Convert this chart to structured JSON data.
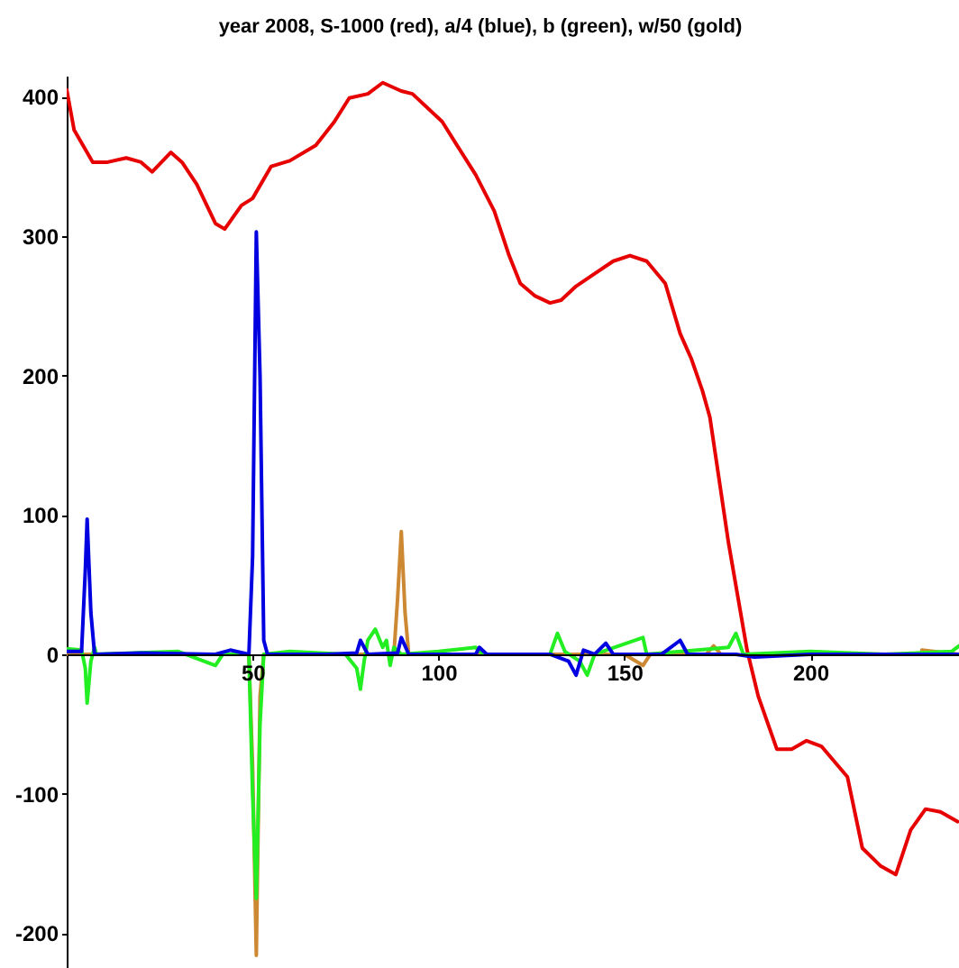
{
  "chart_data": {
    "type": "line",
    "title": "year 2008,   S-1000 (red), a/4 (blue), b (green), w/50 (gold)",
    "xlim": [
      0,
      240
    ],
    "ylim": [
      -225,
      415
    ],
    "xticks": [
      50,
      100,
      150,
      200
    ],
    "yticks": [
      -200,
      -100,
      0,
      100,
      200,
      300,
      400
    ],
    "grid": false,
    "line_style": "solid",
    "series": [
      {
        "color": "#e60000",
        "x": [
          0,
          2,
          7,
          11,
          16,
          20,
          23,
          28,
          31,
          35,
          40,
          42.5,
          47,
          50,
          55,
          60,
          67,
          72,
          76,
          81,
          85,
          90,
          93,
          101,
          105,
          110,
          115,
          119,
          122,
          126,
          130,
          133,
          137,
          142,
          147,
          151.5,
          156,
          161,
          165,
          168,
          171,
          173,
          178,
          183,
          186,
          191,
          195,
          199,
          203,
          210,
          214,
          219,
          223,
          227,
          231,
          235,
          239.6
        ],
        "values": [
          405,
          376,
          353,
          353,
          356,
          353,
          346,
          360,
          353,
          337,
          309,
          305,
          322,
          327,
          350,
          354,
          365,
          382,
          399,
          402,
          410,
          404,
          402,
          382,
          365,
          344,
          318,
          286,
          266,
          257,
          252,
          254,
          264,
          273,
          282,
          286,
          282,
          266,
          230,
          212,
          189,
          170,
          80,
          3,
          -30,
          -68,
          -68,
          -62,
          -66,
          -88,
          -139,
          -152,
          -158,
          -126,
          -111,
          -113,
          -120
        ]
      },
      {
        "color": "#cc8833",
        "x": [
          0,
          49,
          50,
          51,
          52,
          53,
          88,
          89,
          90,
          91,
          92,
          150,
          155,
          157,
          172,
          174,
          176,
          200,
          230,
          240
        ],
        "values": [
          0,
          0,
          -80,
          -216,
          -30,
          0,
          0,
          40,
          88,
          30,
          0,
          0,
          -8,
          0,
          0,
          6,
          0,
          null,
          3,
          0
        ]
      },
      {
        "color": "#22ee22",
        "x": [
          0,
          4,
          5,
          5.5,
          6.5,
          7.5,
          8,
          30,
          40,
          42,
          49,
          50,
          51,
          52,
          53,
          60,
          75,
          78,
          79,
          80,
          81,
          83,
          85,
          86,
          87,
          88,
          90,
          100,
          110,
          112,
          130,
          132,
          134,
          138,
          140,
          142,
          155,
          156,
          178,
          180,
          182,
          200,
          220,
          238,
          240
        ],
        "values": [
          4,
          3,
          -10,
          -35,
          -5,
          5,
          0,
          2,
          -8,
          0,
          0,
          -100,
          -175,
          -50,
          0,
          2,
          0,
          -10,
          -25,
          -5,
          10,
          18,
          5,
          10,
          -8,
          5,
          0,
          2,
          5,
          0,
          0,
          15,
          2,
          -5,
          -15,
          0,
          12,
          0,
          5,
          15,
          0,
          2,
          0,
          2,
          6
        ]
      },
      {
        "color": "#0000e0",
        "x": [
          0,
          4,
          5,
          5.5,
          6.5,
          7.5,
          20,
          40,
          44,
          49,
          50,
          51,
          52,
          53,
          54,
          70,
          78,
          79,
          81,
          89,
          90,
          92,
          110,
          111,
          113,
          130,
          135,
          137,
          139,
          142,
          145,
          147,
          160,
          165,
          167,
          180,
          185,
          200,
          240
        ],
        "values": [
          2,
          2,
          60,
          97,
          30,
          0,
          1,
          0,
          3,
          0,
          70,
          303,
          200,
          10,
          0,
          0,
          1,
          10,
          0,
          1,
          12,
          0,
          0,
          5,
          0,
          0,
          -5,
          -15,
          3,
          0,
          8,
          0,
          0,
          10,
          0,
          0,
          -2,
          0,
          0
        ]
      }
    ]
  }
}
